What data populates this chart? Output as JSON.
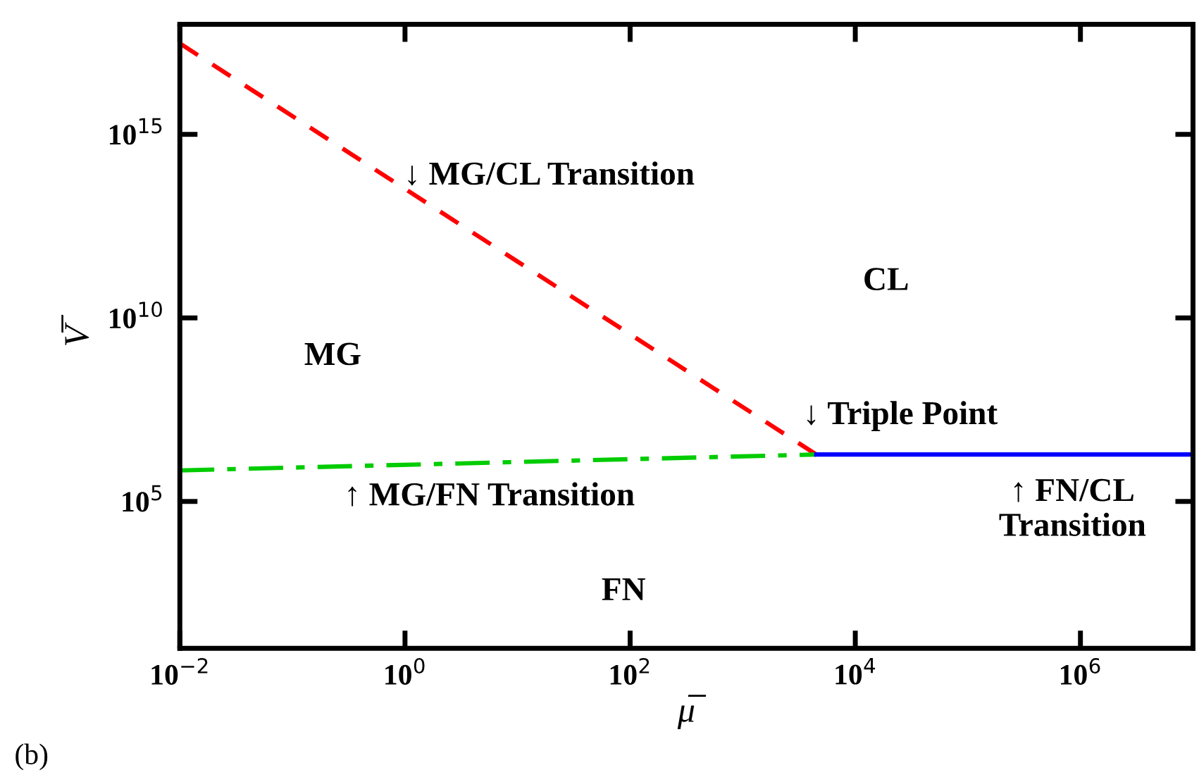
{
  "chart_data": {
    "type": "line",
    "xlabel": "μ̅",
    "ylabel": "V̅",
    "log": "xy",
    "grid": false,
    "legend": false,
    "xlim": [
      0.01,
      10000000
    ],
    "ylim": [
      10,
      1e+18
    ],
    "xticks": [
      {
        "value": 0.01,
        "label": "10$^{−2}$"
      },
      {
        "value": 1,
        "label": "10$^{0}$"
      },
      {
        "value": 100,
        "label": "10$^{2}$"
      },
      {
        "value": 10000,
        "label": "10$^{4}$"
      },
      {
        "value": 1000000,
        "label": "10$^{6}$"
      }
    ],
    "yticks": [
      {
        "value": 100000,
        "label": "10$^{5}$"
      },
      {
        "value": 10000000000,
        "label": "10$^{10}$"
      },
      {
        "value": 1000000000000000.0,
        "label": "10$^{15}$"
      }
    ],
    "series": [
      {
        "color": "#ff0000",
        "line_style": "dashed",
        "x": [
          0.01,
          4500
        ],
        "values": [
          3e+17,
          1900000.0
        ]
      },
      {
        "color": "#00cc00",
        "line_style": "dashdot",
        "x": [
          0.01,
          4500
        ],
        "values": [
          700000.0,
          1900000.0
        ]
      },
      {
        "color": "#0000ff",
        "line_style": "solid",
        "x": [
          4500,
          10000000
        ],
        "values": [
          1900000.0,
          1900000.0
        ]
      }
    ],
    "annotations": [
      "↓ MG/CL Transition",
      "CL",
      "MG",
      "↓ Triple Point",
      "↑ MG/FN Transition",
      "↑ FN/CL\nTransition",
      "FN",
      "(b)"
    ]
  }
}
